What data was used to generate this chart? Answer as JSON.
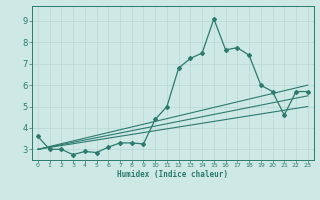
{
  "xlabel": "Humidex (Indice chaleur)",
  "bg_color": "#cde8e5",
  "line_color": "#2d7b6e",
  "grid_color_major": "#b8d8d4",
  "grid_color_minor": "#d0e8e4",
  "xlim": [
    -0.5,
    23.5
  ],
  "ylim": [
    2.5,
    9.7
  ],
  "xticks": [
    0,
    1,
    2,
    3,
    4,
    5,
    6,
    7,
    8,
    9,
    10,
    11,
    12,
    13,
    14,
    15,
    16,
    17,
    18,
    19,
    20,
    21,
    22,
    23
  ],
  "yticks": [
    3,
    4,
    5,
    6,
    7,
    8,
    9
  ],
  "line1_x": [
    0,
    1,
    2,
    3,
    4,
    5,
    6,
    7,
    8,
    9,
    10,
    11,
    12,
    13,
    14,
    15,
    16,
    17,
    18,
    19,
    20,
    21,
    22,
    23
  ],
  "line1_y": [
    3.6,
    3.0,
    3.0,
    2.75,
    2.9,
    2.85,
    3.1,
    3.3,
    3.3,
    3.25,
    4.4,
    5.0,
    6.8,
    7.25,
    7.5,
    9.1,
    7.65,
    7.75,
    7.4,
    6.0,
    5.7,
    4.6,
    5.7,
    5.7
  ],
  "trend1_x": [
    0,
    23
  ],
  "trend1_y": [
    3.0,
    5.0
  ],
  "trend2_x": [
    0,
    23
  ],
  "trend2_y": [
    3.0,
    5.5
  ],
  "trend3_x": [
    0,
    23
  ],
  "trend3_y": [
    3.0,
    6.0
  ]
}
